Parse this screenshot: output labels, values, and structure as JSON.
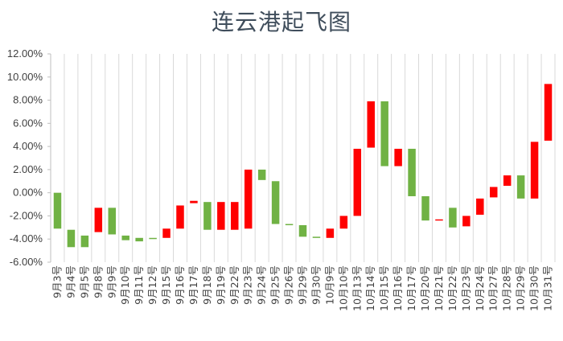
{
  "chart_data": {
    "type": "bar",
    "subtype": "floating-range",
    "title": "连云港起飞图",
    "xlabel": "",
    "ylabel": "",
    "ylim": [
      -6,
      12
    ],
    "yticks": [
      "12.00%",
      "10.00%",
      "8.00%",
      "6.00%",
      "4.00%",
      "2.00%",
      "0.00%",
      "-2.00%",
      "-4.00%",
      "-6.00%"
    ],
    "ytick_values": [
      12,
      10,
      8,
      6,
      4,
      2,
      0,
      -2,
      -4,
      -6
    ],
    "grid": "vertical-category",
    "legend": "none",
    "colors": {
      "up": "#ff0000",
      "down": "#70b244",
      "grid": "#d9d9d9",
      "axis": "#bfbfbf"
    },
    "categories": [
      "9月3号",
      "9月4号",
      "9月5号",
      "9月8号",
      "9月9号",
      "9月10号",
      "9月11号",
      "9月12号",
      "9月15号",
      "9月16号",
      "9月17号",
      "9月18号",
      "9月19号",
      "9月22号",
      "9月23号",
      "9月24号",
      "9月25号",
      "9月26号",
      "9月29号",
      "9月30号",
      "10月9号",
      "10月10号",
      "10月13号",
      "10月14号",
      "10月15号",
      "10月16号",
      "10月17号",
      "10月20号",
      "10月21号",
      "10月22号",
      "10月23号",
      "10月24号",
      "10月27号",
      "10月28号",
      "10月29号",
      "10月30号",
      "10月31号"
    ],
    "series": [
      {
        "open": [
          0.0,
          -3.2,
          -3.7,
          -3.4,
          -1.3,
          -3.7,
          -3.9,
          -3.9,
          -3.9,
          -3.1,
          -0.9,
          -0.8,
          -3.2,
          -3.2,
          -3.1,
          2.0,
          1.0,
          -2.7,
          -2.8,
          -3.8,
          -3.9,
          -3.1,
          -2.0,
          3.9,
          7.9,
          2.3,
          3.8,
          -0.3,
          -2.3,
          -1.3,
          -2.9,
          -1.9,
          -0.4,
          0.6,
          1.5,
          -0.5,
          4.5
        ],
        "close": [
          -3.1,
          -4.7,
          -4.7,
          -1.3,
          -3.6,
          -4.1,
          -4.2,
          -4.0,
          -3.1,
          -1.1,
          -0.7,
          -3.2,
          -0.8,
          -0.8,
          2.0,
          1.1,
          -2.7,
          -2.8,
          -3.8,
          -3.9,
          -3.1,
          -2.0,
          3.8,
          7.9,
          2.3,
          3.8,
          -0.3,
          -2.4,
          -2.3,
          -3.0,
          -2.0,
          -0.5,
          0.5,
          1.5,
          -0.5,
          4.4,
          9.4
        ]
      }
    ]
  }
}
